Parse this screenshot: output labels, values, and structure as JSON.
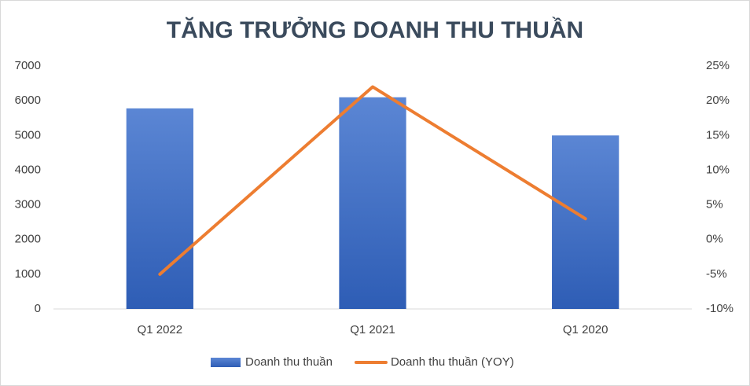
{
  "chart_data": {
    "type": "combo",
    "title": "TĂNG TRƯỞNG DOANH THU THUẦN",
    "categories": [
      "Q1 2022",
      "Q1 2021",
      "Q1 2020"
    ],
    "series": [
      {
        "name": "Doanh thu thuần",
        "type": "bar",
        "color": "#4472c4",
        "values": [
          5780,
          6100,
          5000
        ]
      },
      {
        "name": "Doanh thu thuần (YOY)",
        "type": "line",
        "color": "#ed7d31",
        "axis": "y2",
        "values": [
          -5,
          22,
          3
        ]
      }
    ],
    "ylim": [
      0,
      7000
    ],
    "yticks": [
      0,
      1000,
      2000,
      3000,
      4000,
      5000,
      6000,
      7000
    ],
    "y2lim": [
      -10,
      25
    ],
    "y2ticks": [
      {
        "value": -10,
        "label": "-10%"
      },
      {
        "value": -5,
        "label": "-5%"
      },
      {
        "value": 0,
        "label": "0%"
      },
      {
        "value": 5,
        "label": "5%"
      },
      {
        "value": 10,
        "label": "10%"
      },
      {
        "value": 15,
        "label": "15%"
      },
      {
        "value": 20,
        "label": "20%"
      },
      {
        "value": 25,
        "label": "25%"
      }
    ],
    "grid": false,
    "legend": "bottom"
  }
}
